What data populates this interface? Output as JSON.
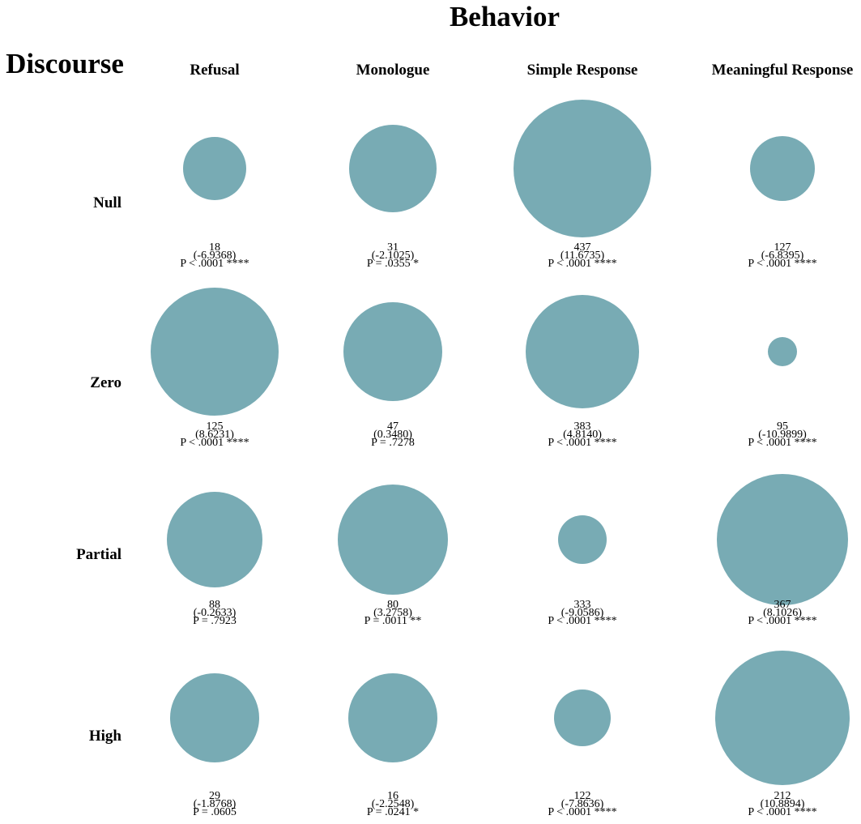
{
  "chart_data": {
    "type": "bubble-matrix",
    "title": "Behavior",
    "row_axis_title": "Discourse",
    "columns": [
      "Refusal",
      "Monologue",
      "Simple Response",
      "Meaningful Response"
    ],
    "rows": [
      "Null",
      "Zero",
      "Partial",
      "High"
    ],
    "bubble_color": "#78abb4",
    "bubble_size_note": "",
    "cells": [
      [
        {
          "count": "18",
          "residual": "(-6.9368)",
          "p": "P < .0001 ****",
          "r": 39
        },
        {
          "count": "31",
          "residual": "(-2.1025)",
          "p": "P = .0355 *",
          "r": 54
        },
        {
          "count": "437",
          "residual": "(11.6735)",
          "p": "P < .0001 ****",
          "r": 85
        },
        {
          "count": "127",
          "residual": "(-6.8395)",
          "p": "P < .0001 ****",
          "r": 40
        }
      ],
      [
        {
          "count": "125",
          "residual": "(8.6231)",
          "p": "P < .0001 ****",
          "r": 79
        },
        {
          "count": "47",
          "residual": "(0.3480)",
          "p": "P = .7278",
          "r": 61
        },
        {
          "count": "383",
          "residual": "(4.8140)",
          "p": "P < .0001 ****",
          "r": 70
        },
        {
          "count": "95",
          "residual": "(-10.9899)",
          "p": "P < .0001 ****",
          "r": 18
        }
      ],
      [
        {
          "count": "88",
          "residual": "(-0.2633)",
          "p": "P = .7923",
          "r": 59
        },
        {
          "count": "80",
          "residual": "(3.2758)",
          "p": "P = .0011 **",
          "r": 68
        },
        {
          "count": "333",
          "residual": "(-9.0586)",
          "p": "P < .0001 ****",
          "r": 30
        },
        {
          "count": "367",
          "residual": "(8.1026)",
          "p": "P < .0001 ****",
          "r": 81
        }
      ],
      [
        {
          "count": "29",
          "residual": "(-1.8768)",
          "p": "P = .0605",
          "r": 55
        },
        {
          "count": "16",
          "residual": "(-2.2548)",
          "p": "P = .0241 *",
          "r": 55
        },
        {
          "count": "122",
          "residual": "(-7.8636)",
          "p": "P < .0001 ****",
          "r": 35
        },
        {
          "count": "212",
          "residual": "(10.8894)",
          "p": "P < .0001 ****",
          "r": 83
        }
      ]
    ]
  }
}
